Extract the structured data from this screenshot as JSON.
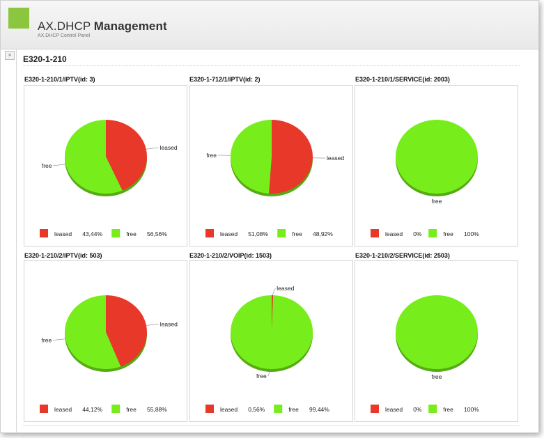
{
  "app": {
    "title_light": "AX.DHCP",
    "title_bold": "Management",
    "subtitle": "AX.DHCP Control Panel",
    "logo_color": "#8cc63e"
  },
  "sidebar": {
    "toggle_icon": "double-chevron-right-icon",
    "toggle_glyph": "»"
  },
  "section": {
    "title": "E320-1-210"
  },
  "colors": {
    "leased": "#e8382a",
    "free": "#77ee1c"
  },
  "chart_data": [
    {
      "type": "pie",
      "title": "E320-1-210/1/IPTV(id: 3)",
      "slices": [
        {
          "label": "leased",
          "value": 43.44,
          "legend": "43,44%"
        },
        {
          "label": "free",
          "value": 56.56,
          "legend": "56,56%"
        }
      ]
    },
    {
      "type": "pie",
      "title": "E320-1-712/1/IPTV(id: 2)",
      "slices": [
        {
          "label": "leased",
          "value": 51.08,
          "legend": "51,08%"
        },
        {
          "label": "free",
          "value": 48.92,
          "legend": "48,92%"
        }
      ]
    },
    {
      "type": "pie",
      "title": "E320-1-210/1/SERVICE(id: 2003)",
      "slices": [
        {
          "label": "leased",
          "value": 0,
          "legend": "0%"
        },
        {
          "label": "free",
          "value": 100,
          "legend": "100%"
        }
      ]
    },
    {
      "type": "pie",
      "title": "E320-1-210/2/IPTV(id: 503)",
      "slices": [
        {
          "label": "leased",
          "value": 44.12,
          "legend": "44,12%"
        },
        {
          "label": "free",
          "value": 55.88,
          "legend": "55,88%"
        }
      ]
    },
    {
      "type": "pie",
      "title": "E320-1-210/2/VOIP(id: 1503)",
      "slices": [
        {
          "label": "leased",
          "value": 0.56,
          "legend": "0,56%"
        },
        {
          "label": "free",
          "value": 99.44,
          "legend": "99,44%"
        }
      ]
    },
    {
      "type": "pie",
      "title": "E320-1-210/2/SERVICE(id: 2503)",
      "slices": [
        {
          "label": "leased",
          "value": 0,
          "legend": "0%"
        },
        {
          "label": "free",
          "value": 100,
          "legend": "100%"
        }
      ]
    }
  ]
}
